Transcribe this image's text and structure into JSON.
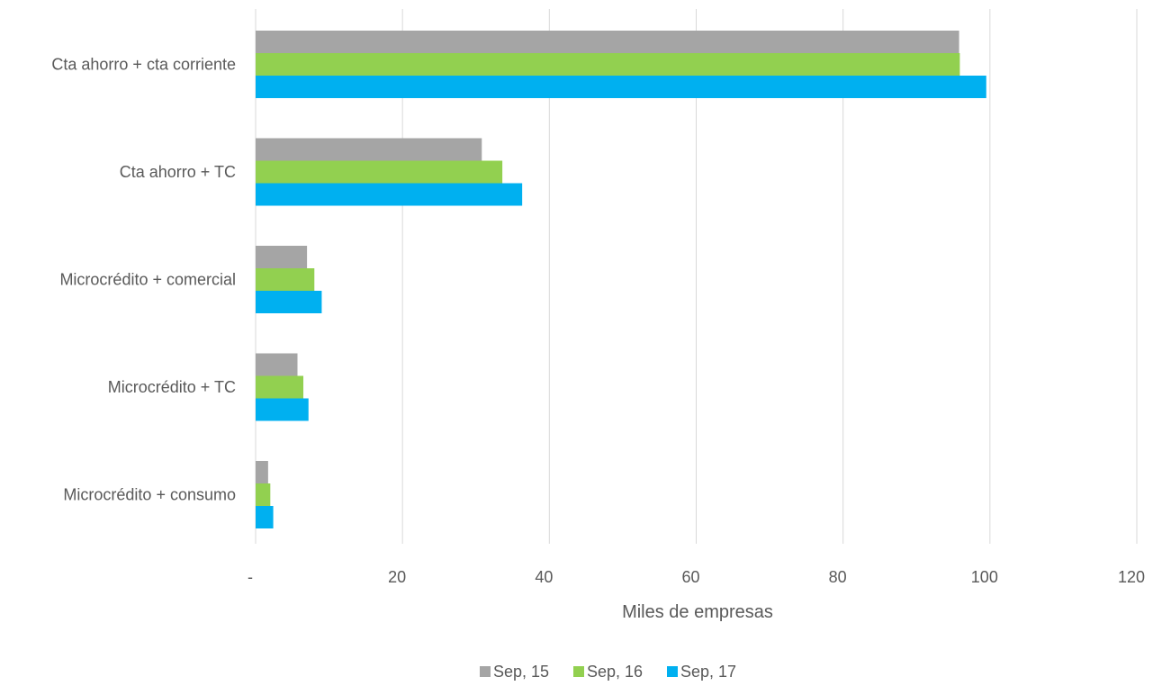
{
  "chart_data": {
    "type": "bar",
    "orientation": "horizontal",
    "categories": [
      "Cta ahorro + cta corriente",
      "Cta ahorro + TC",
      "Microcrédito + comercial",
      "Microcrédito + TC",
      "Microcrédito + consumo"
    ],
    "series": [
      {
        "name": "Sep, 15",
        "color": "#a5a5a5",
        "values": [
          95.8,
          30.8,
          7.0,
          5.7,
          1.7
        ]
      },
      {
        "name": "Sep, 16",
        "color": "#92d050",
        "values": [
          95.9,
          33.6,
          8.0,
          6.5,
          2.0
        ]
      },
      {
        "name": "Sep, 17",
        "color": "#00b0f0",
        "values": [
          99.5,
          36.3,
          9.0,
          7.2,
          2.4
        ]
      }
    ],
    "xlabel": "Miles de empresas",
    "xlim": [
      0,
      120
    ],
    "xticks": [
      0,
      20,
      40,
      60,
      80,
      100,
      120
    ],
    "xtick_labels": [
      "-",
      "20",
      "40",
      "60",
      "80",
      "100",
      "120"
    ],
    "grid": true,
    "legend_position": "bottom"
  }
}
